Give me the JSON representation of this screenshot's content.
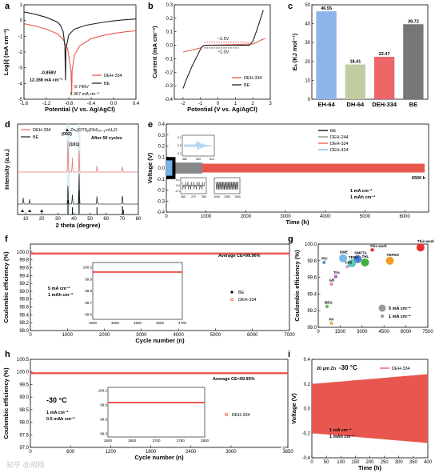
{
  "panel_labels": [
    "a",
    "b",
    "c",
    "d",
    "e",
    "f",
    "g",
    "h",
    "i"
  ],
  "watermark": "知乎 @胡杨",
  "chart_data": [
    {
      "panel": "a",
      "type": "line",
      "xlabel": "Potential (V vs. Ag/AgCl)",
      "ylabel": "Log|i| (mA cm⁻²)",
      "xlim": [
        -1.6,
        0.4
      ],
      "ylim": [
        -5,
        1
      ],
      "xticks": [
        "-1.6",
        "-1.2",
        "-0.8",
        "-0.4",
        "0.0",
        "0.4"
      ],
      "yticks": [
        "-5",
        "-4",
        "-3",
        "-2",
        "-1",
        "0",
        "1"
      ],
      "series": [
        {
          "name": "DEH-334",
          "color": "#e8574f",
          "corrosion_potential": -0.749,
          "x": [
            -1.6,
            -1.4,
            -1.2,
            -1.0,
            -0.9,
            -0.82,
            -0.76,
            -0.749,
            -0.74,
            -0.7,
            -0.6,
            -0.4,
            -0.2,
            0.0,
            0.2,
            0.4
          ],
          "y": [
            -0.2,
            -0.35,
            -0.55,
            -0.85,
            -1.2,
            -1.8,
            -3.2,
            -4.7,
            -3.2,
            -2.2,
            -1.6,
            -1.15,
            -0.95,
            -0.82,
            -0.72,
            -0.65
          ]
        },
        {
          "name": "BE",
          "color": "#222222",
          "corrosion_potential": -0.858,
          "x": [
            -1.6,
            -1.4,
            -1.2,
            -1.0,
            -0.95,
            -0.9,
            -0.87,
            -0.858,
            -0.85,
            -0.8,
            -0.7,
            -0.5,
            -0.2,
            0.0,
            0.2,
            0.4
          ],
          "y": [
            0.55,
            0.4,
            0.2,
            -0.1,
            -0.3,
            -0.7,
            -1.6,
            -3.8,
            -1.8,
            -0.9,
            -0.55,
            -0.3,
            -0.12,
            -0.02,
            0.05,
            0.1
          ]
        }
      ],
      "annotations": [
        {
          "text": "-0.858V",
          "color": "#000000"
        },
        {
          "text": "12.168 mA cm⁻²",
          "color": "#000000"
        },
        {
          "text": "-0.749V",
          "color": "#e8574f"
        },
        {
          "text": "1.367 mA cm⁻²",
          "color": "#e8574f"
        }
      ]
    },
    {
      "panel": "b",
      "type": "line",
      "xlabel": "Potential (V vs. Ag/AgCl)",
      "ylabel": "Current (mA cm⁻²)",
      "xlim": [
        -2.5,
        3
      ],
      "ylim": [
        -0.4,
        0.3
      ],
      "xticks": [
        "-2",
        "-1",
        "0",
        "1",
        "2",
        "3"
      ],
      "yticks": [
        "-0.4",
        "-0.3",
        "-0.2",
        "-0.1",
        "0.0",
        "0.1",
        "0.2",
        "0.3"
      ],
      "series": [
        {
          "name": "DEH-334",
          "color": "#e8574f",
          "x": [
            -2.0,
            -1.5,
            -1.0,
            -0.8,
            0.0,
            1.0,
            1.7,
            2.0,
            2.2,
            2.5,
            2.7
          ],
          "y": [
            -0.05,
            -0.035,
            -0.02,
            0.0,
            0.002,
            0.005,
            0.008,
            0.01,
            0.02,
            0.04,
            0.05
          ]
        },
        {
          "name": "BE",
          "color": "#222222",
          "x": [
            -2.0,
            -1.8,
            -1.5,
            -1.2,
            -1.0,
            -0.9,
            -0.8,
            0.0,
            1.0,
            1.8,
            2.0,
            2.2,
            2.4,
            2.6
          ],
          "y": [
            -0.32,
            -0.25,
            -0.16,
            -0.08,
            -0.03,
            -0.01,
            0.0,
            0.0,
            0.0,
            0.0,
            0.03,
            0.1,
            0.18,
            0.26
          ]
        }
      ],
      "annotations": [
        {
          "text": "~2.5V",
          "color": "#e8574f"
        },
        {
          "text": "~2.0V",
          "color": "#000000"
        }
      ]
    },
    {
      "panel": "c",
      "type": "bar",
      "ylabel": "Eₐ (KJ mol⁻¹)",
      "ylim": [
        0,
        50
      ],
      "yticks": [
        "0",
        "10",
        "20",
        "30",
        "40",
        "50"
      ],
      "categories": [
        "EH-64",
        "DH-64",
        "DEH-334",
        "BE"
      ],
      "values": [
        46.55,
        18.41,
        22.47,
        39.72
      ],
      "value_labels": [
        "46.55",
        "18.41",
        "22.47",
        "39.72"
      ],
      "colors": [
        "#8fb4ec",
        "#c2cca3",
        "#ec6668",
        "#777777"
      ]
    },
    {
      "panel": "d",
      "type": "line",
      "xlabel": "2 theta (degree)",
      "ylabel": "Intensity (a.u.)",
      "xlim": [
        5,
        80
      ],
      "xticks": [
        "10",
        "20",
        "30",
        "40",
        "50",
        "60",
        "70",
        "80"
      ],
      "series": [
        {
          "name": "DEH-334",
          "color": "#e87a7a"
        },
        {
          "name": "BE",
          "color": "#333333"
        }
      ],
      "reference_label": "Znₓ(OTf)ᵧ(OH)₂ₓ₋ᵧ·nH₂O",
      "peaks_DEH334": [
        {
          "x": 36.3,
          "h": 1.0
        },
        {
          "x": 39.0,
          "h": 0.45
        },
        {
          "x": 43.2,
          "h": 0.7
        },
        {
          "x": 54.3,
          "h": 0.2
        },
        {
          "x": 70.1,
          "h": 0.18
        }
      ],
      "peaks_BE": [
        {
          "x": 8.5,
          "h": 0.2
        },
        {
          "x": 12.5,
          "h": 0.15
        },
        {
          "x": 36.3,
          "h": 0.6
        },
        {
          "x": 39.0,
          "h": 0.3
        },
        {
          "x": 43.2,
          "h": 1.0
        },
        {
          "x": 54.3,
          "h": 0.25
        },
        {
          "x": 70.1,
          "h": 0.3
        }
      ],
      "reference_peaks": [
        {
          "x": 36.3,
          "h": 0.6
        },
        {
          "x": 39.0,
          "h": 0.3
        },
        {
          "x": 43.2,
          "h": 1.0
        },
        {
          "x": 54.3,
          "h": 0.3
        },
        {
          "x": 70.1,
          "h": 0.35
        },
        {
          "x": 70.7,
          "h": 0.2
        }
      ],
      "annotations": [
        "After 50 cycles",
        "(002)",
        "(101)"
      ]
    },
    {
      "panel": "e",
      "type": "line",
      "xlabel": "Time (h)",
      "ylabel": "Voltage (V)",
      "xlim": [
        0,
        6600
      ],
      "ylim": [
        -0.4,
        0.4
      ],
      "xticks": [
        "0",
        "1000",
        "2000",
        "3000",
        "4000",
        "5000",
        "6000"
      ],
      "yticks": [
        "-0.4",
        "-0.3",
        "-0.2",
        "-0.1",
        "0.0",
        "0.1",
        "0.2",
        "0.3",
        "0.4"
      ],
      "series": [
        {
          "name": "BE",
          "color": "#000000",
          "end_time": 230,
          "amplitude": 0.1
        },
        {
          "name": "DEH-244",
          "color": "#888888",
          "end_time": 900,
          "amplitude": 0.05
        },
        {
          "name": "DEH-334",
          "color": "#e8574f",
          "end_time": 6500,
          "amplitude": 0.04
        },
        {
          "name": "DEH-424",
          "color": "#74b3e8",
          "end_time": 150,
          "amplitude": 0.07
        }
      ],
      "annotations": [
        "6500 h",
        "1 mA cm⁻²",
        "1 mAh cm⁻²"
      ],
      "insets": [
        {
          "xticks": [
            "580",
            "600",
            "610"
          ],
          "yticks": [
            "0.1",
            "0.0",
            "-0.1"
          ]
        },
        {
          "xticks": [
            "260",
            "270",
            "280"
          ],
          "yticks": [
            "0.1",
            "0.0",
            "-0.1"
          ]
        },
        {
          "xticks": [
            "1040",
            "1050",
            "1060"
          ],
          "yticks": []
        }
      ]
    },
    {
      "panel": "f",
      "type": "scatter",
      "xlabel": "Cycle number (n)",
      "ylabel": "Coulombic efficiency (%)",
      "xlim": [
        0,
        7000
      ],
      "ylim": [
        98.0,
        100.2
      ],
      "xticks": [
        "0",
        "1000",
        "2000",
        "3000",
        "4000",
        "5000",
        "6000",
        "7000"
      ],
      "yticks": [
        "98.0",
        "98.2",
        "98.4",
        "98.6",
        "98.8",
        "99.0",
        "99.2",
        "99.4",
        "99.6",
        "99.8",
        "100.0"
      ],
      "series": [
        {
          "name": "BE",
          "color": "#000000"
        },
        {
          "name": "DEH-334",
          "color": "#e8574f",
          "x_range": [
            0,
            7000
          ],
          "mean": 99.96
        }
      ],
      "annotations": [
        "Average CE=99.96%",
        "5 mA cm⁻²",
        "1 mAh cm⁻²"
      ],
      "inset": {
        "xlim": [
          4500,
          4700
        ],
        "xticks": [
          "4500",
          "4550",
          "4600",
          "4650",
          "4700"
        ],
        "yticks": [
          "100.0",
          "99.9",
          "99.8",
          "99.7",
          "99.6"
        ]
      }
    },
    {
      "panel": "g",
      "type": "scatter",
      "ylabel": "Coulombic efficiency (%)",
      "xlim": [
        0,
        7500
      ],
      "ylim": [
        99.0,
        100.0
      ],
      "xticks": [
        "0",
        "1500",
        "3000",
        "4500",
        "6000",
        "7500"
      ],
      "yticks": [
        "99.0",
        "99.2",
        "99.4",
        "99.6",
        "99.8",
        "100.0"
      ],
      "points": [
        {
          "label": "This work",
          "x": 7000,
          "y": 99.96,
          "color": "#e83030",
          "size": "large"
        },
        {
          "label": "This work",
          "x": 3700,
          "y": 99.93,
          "color": "#e83030",
          "size": "small"
        },
        {
          "label": "TDFNO",
          "x": 4900,
          "y": 99.8,
          "color": "#f0a020",
          "size": "large"
        },
        {
          "label": "DMFTA",
          "x": 2700,
          "y": 99.82,
          "color": "#4a7fd0",
          "size": "large"
        },
        {
          "label": "DME",
          "x": 1700,
          "y": 99.83,
          "color": "#7ab8e8",
          "size": "large"
        },
        {
          "label": "THL",
          "x": 3200,
          "y": 99.78,
          "color": "#40b040",
          "size": "large"
        },
        {
          "label": "PIC",
          "x": 400,
          "y": 99.78,
          "color": "#5aa0e0",
          "size": "small"
        },
        {
          "label": "TEOA",
          "x": 2300,
          "y": 99.77,
          "color": "#58c8b0",
          "size": "large"
        },
        {
          "label": "Cd3",
          "x": 2000,
          "y": 99.73,
          "color": "#c8a0e8",
          "size": "small"
        },
        {
          "label": "Tris",
          "x": 1200,
          "y": 99.61,
          "color": "#b060c8",
          "size": "small"
        },
        {
          "label": "GB",
          "x": 900,
          "y": 99.52,
          "color": "#e888c0",
          "size": "small"
        },
        {
          "label": "BEG",
          "x": 600,
          "y": 99.25,
          "color": "#60c060",
          "size": "small"
        },
        {
          "label": "PA",
          "x": 900,
          "y": 99.05,
          "color": "#e8b060",
          "size": "small"
        }
      ],
      "legend": [
        "5 mA cm⁻²",
        "1 mA cm⁻²"
      ]
    },
    {
      "panel": "h",
      "type": "scatter",
      "xlabel": "Cycle number (n)",
      "ylabel": "Coulombic efficiency (%)",
      "xlim": [
        0,
        3850
      ],
      "ylim": [
        97.0,
        100.5
      ],
      "xticks": [
        "0",
        "600",
        "1200",
        "1800",
        "2400",
        "3000",
        "3850"
      ],
      "yticks": [
        "97.0",
        "97.5",
        "98.0",
        "98.5",
        "99.0",
        "99.5",
        "100.0",
        "100.5"
      ],
      "series": [
        {
          "name": "DEH-334",
          "color": "#e8574f",
          "x_range": [
            0,
            3850
          ],
          "mean": 99.95
        }
      ],
      "annotations": [
        "Average CE=99.95%",
        "-30 °C",
        "1 mA cm⁻²",
        "0.5 mAh cm⁻²"
      ],
      "inset": {
        "xlim": [
          2600,
          2800
        ],
        "xticks": [
          "2600",
          "2650",
          "2700",
          "2750",
          "2800"
        ],
        "yticks": [
          "100.2",
          "99.9",
          "99.6",
          "99.3"
        ]
      }
    },
    {
      "panel": "i",
      "type": "area",
      "xlabel": "Time (h)",
      "ylabel": "Voltage (V)",
      "xlim": [
        0,
        400
      ],
      "ylim": [
        -0.4,
        0.4
      ],
      "xticks": [
        "0",
        "50",
        "100",
        "150",
        "200",
        "250",
        "300",
        "350",
        "400"
      ],
      "yticks": [
        "-0.4",
        "-0.2",
        "0.0",
        "0.2",
        "0.4"
      ],
      "series": [
        {
          "name": "DEH-334",
          "color": "#e8574f",
          "amplitude_start": 0.2,
          "amplitude_end": 0.28
        }
      ],
      "annotations": [
        "20 μm Zn",
        "-30 °C",
        "1 mA cm⁻²",
        "1 mAh cm⁻²"
      ]
    }
  ]
}
